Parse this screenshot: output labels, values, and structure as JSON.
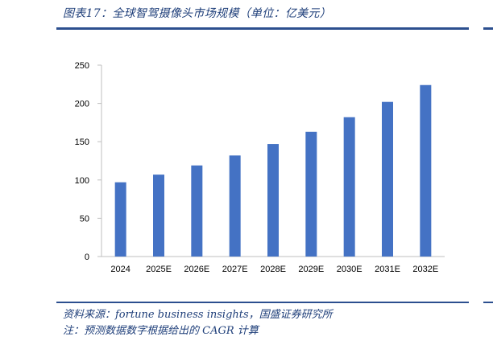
{
  "header": {
    "title": "图表17：全球智驾摄像头市场规模（单位：亿美元）"
  },
  "footer": {
    "source": "资料来源：fortune business insights，国盛证券研究所",
    "note": "注：预测数据数字根据给出的 CAGR 计算"
  },
  "chart_data": {
    "type": "bar",
    "categories": [
      "2024",
      "2025E",
      "2026E",
      "2027E",
      "2028E",
      "2029E",
      "2030E",
      "2031E",
      "2032E"
    ],
    "values": [
      97,
      107,
      119,
      132,
      147,
      163,
      182,
      202,
      224
    ],
    "title": "",
    "xlabel": "",
    "ylabel": "",
    "ylim": [
      0,
      250
    ],
    "yticks": [
      0,
      50,
      100,
      150,
      200,
      250
    ],
    "grid": false,
    "legend": "none",
    "bar_color": "#4472c4"
  }
}
